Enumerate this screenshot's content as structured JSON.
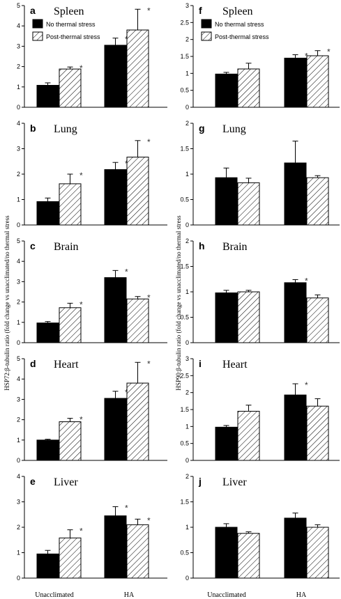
{
  "left_ylabel": "HSP72:β-tubulin ratio (fold change vs unacclimated/no thermal stress",
  "right_ylabel": "HSP90:β-tubulin ratio (fold change vs unacclimated/no thermal stress",
  "colors": {
    "bar_no_stress": "#000000",
    "bar_post_stress": "#ffffff",
    "hatch": "#000000"
  },
  "chart_data": [
    {
      "type": "bar",
      "panel": "a",
      "title": "Spleen",
      "protein": "HSP72",
      "categories": [
        "Unacclimated",
        "HA"
      ],
      "ylim": [
        0,
        5
      ],
      "yticks": [
        0,
        1,
        2,
        3,
        4,
        5
      ],
      "legend": [
        "No thermal stress",
        "Post-thermal stress"
      ],
      "series": [
        {
          "name": "No thermal stress",
          "values": [
            1.08,
            3.05
          ],
          "errors": [
            0.12,
            0.35
          ],
          "significant": [
            false,
            true
          ]
        },
        {
          "name": "Post-thermal stress",
          "values": [
            1.88,
            3.8
          ],
          "errors": [
            0.1,
            1.02
          ],
          "significant": [
            true,
            true
          ]
        }
      ]
    },
    {
      "type": "bar",
      "panel": "b",
      "title": "Lung",
      "protein": "HSP72",
      "categories": [
        "Unacclimated",
        "HA"
      ],
      "ylim": [
        0,
        4
      ],
      "yticks": [
        0,
        1,
        2,
        3,
        4
      ],
      "series": [
        {
          "name": "No thermal stress",
          "values": [
            0.92,
            2.18
          ],
          "errors": [
            0.14,
            0.28
          ],
          "significant": [
            false,
            true
          ]
        },
        {
          "name": "Post-thermal stress",
          "values": [
            1.62,
            2.67
          ],
          "errors": [
            0.38,
            0.65
          ],
          "significant": [
            true,
            true
          ]
        }
      ]
    },
    {
      "type": "bar",
      "panel": "c",
      "title": "Brain",
      "protein": "HSP72",
      "categories": [
        "Unacclimated",
        "HA"
      ],
      "ylim": [
        0,
        5
      ],
      "yticks": [
        0,
        1,
        2,
        3,
        4,
        5
      ],
      "series": [
        {
          "name": "No thermal stress",
          "values": [
            0.97,
            3.2
          ],
          "errors": [
            0.07,
            0.35
          ],
          "significant": [
            false,
            true
          ]
        },
        {
          "name": "Post-thermal stress",
          "values": [
            1.72,
            2.15
          ],
          "errors": [
            0.22,
            0.12
          ],
          "significant": [
            true,
            true
          ]
        }
      ]
    },
    {
      "type": "bar",
      "panel": "d",
      "title": "Heart",
      "protein": "HSP72",
      "categories": [
        "Unacclimated",
        "HA"
      ],
      "ylim": [
        0,
        5
      ],
      "yticks": [
        0,
        1,
        2,
        3,
        4,
        5
      ],
      "series": [
        {
          "name": "No thermal stress",
          "values": [
            1.0,
            3.05
          ],
          "errors": [
            0.04,
            0.35
          ],
          "significant": [
            false,
            true
          ]
        },
        {
          "name": "Post-thermal stress",
          "values": [
            1.9,
            3.8
          ],
          "errors": [
            0.17,
            1.02
          ],
          "significant": [
            true,
            true
          ]
        }
      ]
    },
    {
      "type": "bar",
      "panel": "e",
      "title": "Liver",
      "protein": "HSP72",
      "categories": [
        "Unacclimated",
        "HA"
      ],
      "ylim": [
        0,
        4
      ],
      "yticks": [
        0,
        1,
        2,
        3,
        4
      ],
      "series": [
        {
          "name": "No thermal stress",
          "values": [
            0.95,
            2.45
          ],
          "errors": [
            0.14,
            0.36
          ],
          "significant": [
            false,
            true
          ]
        },
        {
          "name": "Post-thermal stress",
          "values": [
            1.58,
            2.1
          ],
          "errors": [
            0.32,
            0.22
          ],
          "significant": [
            true,
            true
          ]
        }
      ]
    },
    {
      "type": "bar",
      "panel": "f",
      "title": "Spleen",
      "protein": "HSP90",
      "categories": [
        "Unacclimated",
        "HA"
      ],
      "ylim": [
        0,
        3
      ],
      "yticks": [
        0,
        0.5,
        1,
        1.5,
        2,
        2.5,
        3
      ],
      "legend": [
        "No thermal stress",
        "Post-thermal stress"
      ],
      "series": [
        {
          "name": "No thermal stress",
          "values": [
            0.98,
            1.45
          ],
          "errors": [
            0.05,
            0.1
          ],
          "significant": [
            false,
            true
          ]
        },
        {
          "name": "Post-thermal stress",
          "values": [
            1.13,
            1.52
          ],
          "errors": [
            0.17,
            0.15
          ],
          "significant": [
            false,
            true
          ]
        }
      ]
    },
    {
      "type": "bar",
      "panel": "g",
      "title": "Lung",
      "protein": "HSP90",
      "categories": [
        "Unacclimated",
        "HA"
      ],
      "ylim": [
        0,
        2
      ],
      "yticks": [
        0,
        0.5,
        1,
        1.5,
        2
      ],
      "series": [
        {
          "name": "No thermal stress",
          "values": [
            0.93,
            1.22
          ],
          "errors": [
            0.19,
            0.43
          ],
          "significant": [
            false,
            false
          ]
        },
        {
          "name": "Post-thermal stress",
          "values": [
            0.83,
            0.93
          ],
          "errors": [
            0.09,
            0.04
          ],
          "significant": [
            false,
            false
          ]
        }
      ]
    },
    {
      "type": "bar",
      "panel": "h",
      "title": "Brain",
      "protein": "HSP90",
      "categories": [
        "Unacclimated",
        "HA"
      ],
      "ylim": [
        0,
        2
      ],
      "yticks": [
        0,
        0.5,
        1,
        1.5,
        2
      ],
      "series": [
        {
          "name": "No thermal stress",
          "values": [
            0.98,
            1.18
          ],
          "errors": [
            0.05,
            0.06
          ],
          "significant": [
            false,
            true
          ]
        },
        {
          "name": "Post-thermal stress",
          "values": [
            1.0,
            0.88
          ],
          "errors": [
            0.03,
            0.06
          ],
          "significant": [
            false,
            false
          ]
        }
      ]
    },
    {
      "type": "bar",
      "panel": "i",
      "title": "Heart",
      "protein": "HSP90",
      "categories": [
        "Unacclimated",
        "HA"
      ],
      "ylim": [
        0,
        3
      ],
      "yticks": [
        0,
        0.5,
        1,
        1.5,
        2,
        2.5,
        3
      ],
      "series": [
        {
          "name": "No thermal stress",
          "values": [
            0.98,
            1.93
          ],
          "errors": [
            0.05,
            0.33
          ],
          "significant": [
            false,
            true
          ]
        },
        {
          "name": "Post-thermal stress",
          "values": [
            1.45,
            1.6
          ],
          "errors": [
            0.18,
            0.22
          ],
          "significant": [
            false,
            false
          ]
        }
      ]
    },
    {
      "type": "bar",
      "panel": "j",
      "title": "Liver",
      "protein": "HSP90",
      "categories": [
        "Unacclimated",
        "HA"
      ],
      "ylim": [
        0,
        2
      ],
      "yticks": [
        0,
        0.5,
        1,
        1.5,
        2
      ],
      "series": [
        {
          "name": "No thermal stress",
          "values": [
            1.0,
            1.18
          ],
          "errors": [
            0.07,
            0.1
          ],
          "significant": [
            false,
            false
          ]
        },
        {
          "name": "Post-thermal stress",
          "values": [
            0.88,
            1.0
          ],
          "errors": [
            0.03,
            0.05
          ],
          "significant": [
            false,
            false
          ]
        }
      ]
    }
  ]
}
